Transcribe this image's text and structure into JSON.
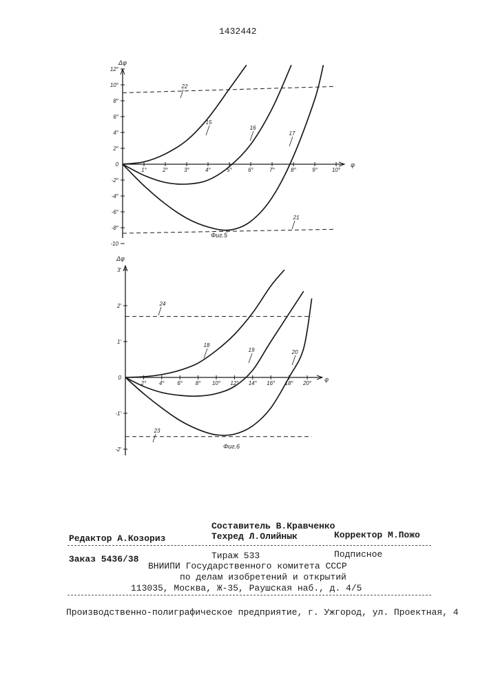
{
  "patent_number": "1432442",
  "figures": [
    {
      "caption": "Фиг.5",
      "y_axis_label": "Δφ",
      "x_axis_label": "φ",
      "x_ticks": [
        "1°",
        "2°",
        "3°",
        "4°",
        "5°",
        "6°",
        "7°",
        "8°",
        "9°",
        "10°"
      ],
      "y_ticks_pos": [
        "2°",
        "4°",
        "6°",
        "8°",
        "10°",
        "12°"
      ],
      "y_ticks_neg": [
        "-2°",
        "-4°",
        "-6°",
        "-8°",
        "-10"
      ],
      "origin_label": "0",
      "curve_labels": [
        "15",
        "16",
        "17"
      ],
      "limit_labels": [
        "22",
        "21"
      ]
    },
    {
      "caption": "Фиг.6",
      "y_axis_label": "Δφ",
      "x_axis_label": "φ",
      "x_ticks": [
        "2°",
        "4°",
        "6°",
        "8°",
        "10°",
        "12°",
        "14°",
        "16°",
        "18°",
        "20°"
      ],
      "y_ticks_pos": [
        "1'",
        "2'",
        "3'"
      ],
      "y_ticks_neg": [
        "-1'",
        "-2'"
      ],
      "origin_label": "0",
      "curve_labels": [
        "18",
        "19",
        "20"
      ],
      "limit_labels": [
        "24",
        "23"
      ]
    }
  ],
  "chart_data": [
    {
      "type": "line",
      "title": "Фиг.5",
      "xlabel": "φ",
      "ylabel": "Δφ",
      "xlim": [
        0,
        10
      ],
      "ylim": [
        -10,
        12
      ],
      "series": [
        {
          "name": "15",
          "x": [
            0,
            1,
            2,
            3,
            4,
            5,
            5.8
          ],
          "y": [
            0,
            0.3,
            1.3,
            3.0,
            5.8,
            9.5,
            12.5
          ]
        },
        {
          "name": "16",
          "x": [
            0,
            1,
            2,
            3,
            4,
            5,
            6,
            7,
            7.9
          ],
          "y": [
            0,
            -1.4,
            -2.3,
            -2.5,
            -2.0,
            -0.3,
            2.5,
            7.0,
            12.5
          ]
        },
        {
          "name": "17",
          "x": [
            0,
            1,
            2,
            3,
            4,
            5,
            6,
            7,
            8,
            9,
            9.4
          ],
          "y": [
            0,
            -2.7,
            -5.0,
            -6.8,
            -7.9,
            -8.3,
            -7.2,
            -4.2,
            1.0,
            8.2,
            12.5
          ]
        },
        {
          "name": "22",
          "x": [
            0,
            10
          ],
          "y": [
            9.0,
            9.8
          ]
        },
        {
          "name": "21",
          "x": [
            0,
            10
          ],
          "y": [
            -8.7,
            -8.2
          ]
        }
      ]
    },
    {
      "type": "line",
      "title": "Фиг.6",
      "xlabel": "φ",
      "ylabel": "Δφ",
      "xlim": [
        0,
        20
      ],
      "ylim": [
        -2,
        3
      ],
      "series": [
        {
          "name": "18",
          "x": [
            0,
            2,
            4,
            6,
            8,
            10,
            12,
            14,
            16,
            17.5
          ],
          "y": [
            0,
            0.02,
            0.08,
            0.2,
            0.4,
            0.75,
            1.2,
            1.8,
            2.55,
            3.0
          ]
        },
        {
          "name": "19",
          "x": [
            0,
            2,
            4,
            6,
            8,
            10,
            12,
            14,
            16,
            19.6
          ],
          "y": [
            0,
            -0.25,
            -0.42,
            -0.5,
            -0.52,
            -0.45,
            -0.25,
            0.2,
            1.0,
            2.4
          ]
        },
        {
          "name": "20",
          "x": [
            0,
            2,
            4,
            6,
            8,
            10,
            12,
            14,
            16,
            18,
            19.6,
            20.5
          ],
          "y": [
            0,
            -0.45,
            -0.85,
            -1.2,
            -1.45,
            -1.6,
            -1.58,
            -1.35,
            -0.85,
            0,
            0.8,
            2.2
          ]
        },
        {
          "name": "24",
          "x": [
            0,
            20.5
          ],
          "y": [
            1.7,
            1.7
          ]
        },
        {
          "name": "23",
          "x": [
            0,
            20.5
          ],
          "y": [
            -1.65,
            -1.65
          ]
        }
      ]
    }
  ],
  "footer": {
    "compiler": "Составитель В.Кравченко",
    "editor": "Редактор А.Козориз",
    "techred": "Техред Л.Олийнык",
    "corrector": "Корректор М.Пожо",
    "order": "Заказ 5436/38",
    "circulation": "Тираж 533",
    "subscription": "Подписное",
    "org_line1": "ВНИИПИ Государственного комитета СССР",
    "org_line2": "по делам изобретений и открытий",
    "org_line3": "113035, Москва, Ж-35, Раушская наб., д. 4/5",
    "printer": "Производственно-полиграфическое предприятие, г. Ужгород, ул. Проектная, 4"
  }
}
